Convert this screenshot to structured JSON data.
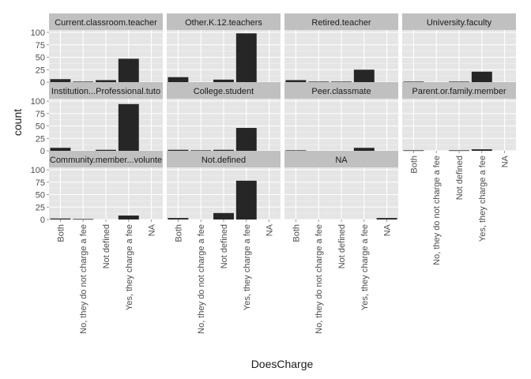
{
  "chart_data": {
    "type": "bar",
    "xlabel": "DoesCharge",
    "ylabel": "count",
    "ylim": [
      0,
      100
    ],
    "yticks": [
      0,
      25,
      50,
      75,
      100
    ],
    "grid": true,
    "categories": [
      "Both",
      "No, they do not charge a fee",
      "Not defined",
      "Yes, they charge a fee",
      "NA"
    ],
    "facets": [
      {
        "name": "Current.classroom.teacher",
        "values": [
          6,
          1,
          4,
          47,
          0
        ]
      },
      {
        "name": "Other.K.12.teachers",
        "values": [
          10,
          0,
          5,
          98,
          0
        ]
      },
      {
        "name": "Retired.teacher",
        "values": [
          4,
          1,
          1,
          25,
          0
        ]
      },
      {
        "name": "University.faculty",
        "values": [
          1,
          0,
          1,
          21,
          0
        ]
      },
      {
        "name": "Institution...Professional.tuto",
        "values": [
          6,
          0,
          2,
          94,
          0
        ]
      },
      {
        "name": "College.student",
        "values": [
          2,
          1,
          2,
          46,
          0
        ]
      },
      {
        "name": "Peer.classmate",
        "values": [
          1,
          0,
          0,
          6,
          0
        ]
      },
      {
        "name": "Parent.or.family.member",
        "values": [
          1,
          0,
          1,
          3,
          0
        ]
      },
      {
        "name": "Community.member...volunte",
        "values": [
          2,
          1,
          0,
          8,
          0
        ]
      },
      {
        "name": "Not.defined",
        "values": [
          3,
          0,
          13,
          78,
          0
        ]
      },
      {
        "name": "NA",
        "values": [
          0,
          0,
          0,
          0,
          3
        ]
      }
    ]
  }
}
